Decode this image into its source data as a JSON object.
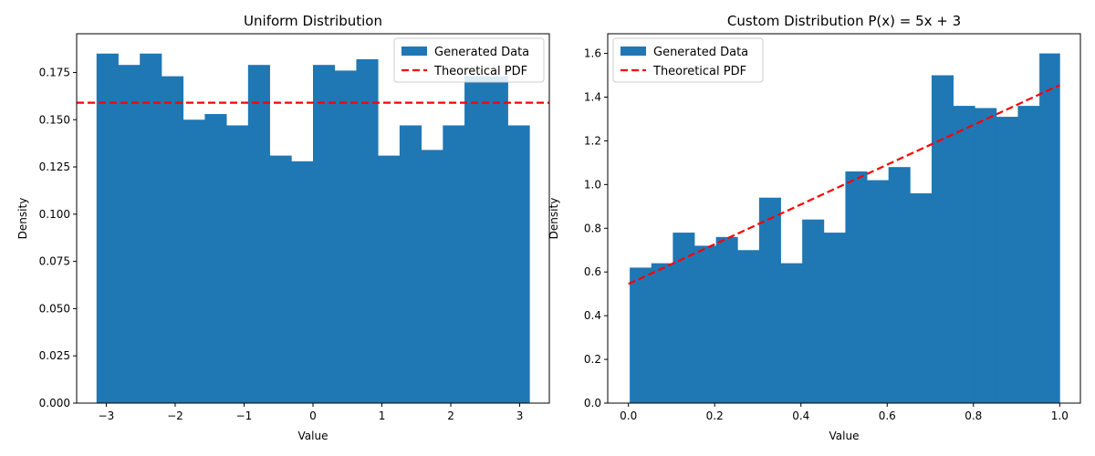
{
  "chart_data": [
    {
      "type": "bar",
      "title": "Uniform Distribution",
      "xlabel": "Value",
      "ylabel": "Density",
      "xlim": [
        -3.43,
        3.43
      ],
      "ylim": [
        0,
        0.1955
      ],
      "xticks": [
        -3,
        -2,
        -1,
        0,
        1,
        2,
        3
      ],
      "xtick_labels": [
        "−3",
        "−2",
        "−1",
        "0",
        "1",
        "2",
        "3"
      ],
      "yticks": [
        0,
        0.025,
        0.05,
        0.075,
        0.1,
        0.125,
        0.15,
        0.175
      ],
      "ytick_labels": [
        "0.000",
        "0.025",
        "0.050",
        "0.075",
        "0.100",
        "0.125",
        "0.150",
        "0.175"
      ],
      "bin_edges": [
        -3.1416,
        -2.8274,
        -2.5133,
        -2.1991,
        -1.885,
        -1.5708,
        -1.2566,
        -0.9425,
        -0.6283,
        -0.3142,
        0,
        0.3142,
        0.6283,
        0.9425,
        1.2566,
        1.5708,
        1.885,
        2.1991,
        2.5133,
        2.8274,
        3.1416
      ],
      "series": [
        {
          "name": "Generated Data",
          "kind": "histogram",
          "color": "#1f77b4",
          "values": [
            0.185,
            0.179,
            0.185,
            0.173,
            0.15,
            0.153,
            0.147,
            0.179,
            0.131,
            0.128,
            0.179,
            0.176,
            0.182,
            0.131,
            0.147,
            0.134,
            0.147,
            0.173,
            0.173,
            0.147
          ]
        },
        {
          "name": "Theoretical PDF",
          "kind": "line",
          "style": "dashed",
          "color": "#ff0000",
          "x": [
            -3.43,
            3.43
          ],
          "y": [
            0.159,
            0.159
          ]
        }
      ],
      "legend_position": "upper right",
      "grid": false
    },
    {
      "type": "bar",
      "title": "Custom Distribution P(x) = 5x + 3",
      "xlabel": "Value",
      "ylabel": "Density",
      "xlim": [
        -0.048,
        1.048
      ],
      "ylim": [
        0,
        1.69
      ],
      "xticks": [
        0,
        0.2,
        0.4,
        0.6,
        0.8,
        1.0
      ],
      "xtick_labels": [
        "0.0",
        "0.2",
        "0.4",
        "0.6",
        "0.8",
        "1.0"
      ],
      "yticks": [
        0,
        0.2,
        0.4,
        0.6,
        0.8,
        1.0,
        1.2,
        1.4,
        1.6
      ],
      "ytick_labels": [
        "0.0",
        "0.2",
        "0.4",
        "0.6",
        "0.8",
        "1.0",
        "1.2",
        "1.4",
        "1.6"
      ],
      "bin_edges": [
        0.003,
        0.053,
        0.103,
        0.153,
        0.203,
        0.253,
        0.303,
        0.353,
        0.403,
        0.453,
        0.503,
        0.553,
        0.603,
        0.653,
        0.703,
        0.753,
        0.803,
        0.853,
        0.903,
        0.953,
        1.0
      ],
      "series": [
        {
          "name": "Generated Data",
          "kind": "histogram",
          "color": "#1f77b4",
          "values": [
            0.62,
            0.64,
            0.78,
            0.72,
            0.76,
            0.7,
            0.94,
            0.64,
            0.84,
            0.78,
            1.06,
            1.02,
            1.08,
            0.96,
            1.5,
            1.36,
            1.35,
            1.31,
            1.36,
            1.6
          ]
        },
        {
          "name": "Theoretical PDF",
          "kind": "line",
          "style": "dashed",
          "color": "#ff0000",
          "x": [
            0.0,
            1.0
          ],
          "y": [
            0.545,
            1.455
          ]
        }
      ],
      "legend_position": "upper left",
      "grid": false
    }
  ]
}
